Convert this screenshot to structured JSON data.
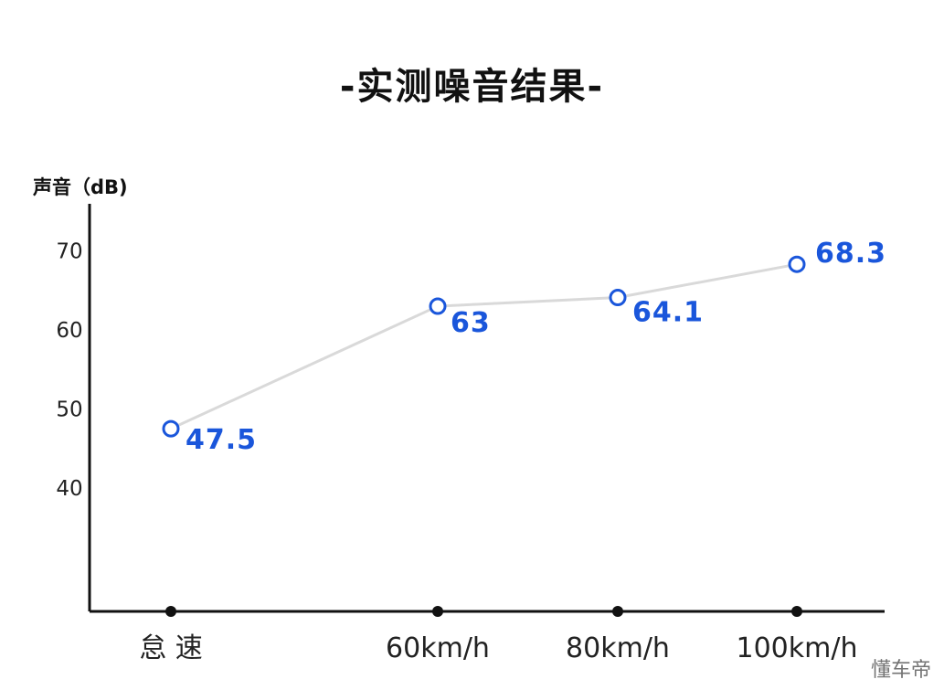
{
  "title": "-实测噪音结果-",
  "watermark": "懂车帝",
  "chart_data": {
    "type": "line",
    "title": "-实测噪音结果-",
    "ylabel": "声音（dB)",
    "xlabel": "",
    "categories": [
      "怠 速",
      "60km/h",
      "80km/h",
      "100km/h"
    ],
    "series": [
      {
        "values": [
          47.5,
          63,
          64.1,
          68.3
        ],
        "labels": [
          "47.5",
          "63",
          "64.1",
          "68.3"
        ]
      }
    ],
    "yticks": [
      40,
      50,
      60,
      70
    ],
    "ylim": [
      25,
      75
    ],
    "grid": false,
    "line_color": "#d9d9d9",
    "marker_color": "#1a56db",
    "label_color": "#1a56db",
    "axis_color": "#111111"
  }
}
